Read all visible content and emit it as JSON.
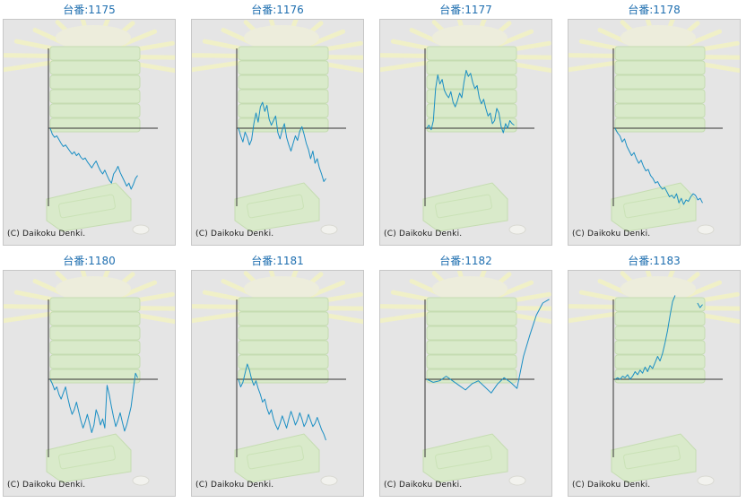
{
  "colors": {
    "line": "#1b8fc4",
    "axis": "#333333",
    "title": "#1f6fb0",
    "panel_bg": "#e5e5e5"
  },
  "chart_data": [
    {
      "type": "line",
      "title": "台番:1175",
      "credit": "(C) Daikoku Denki.",
      "ylim": [
        -1,
        1
      ],
      "values": [
        0.0,
        -0.08,
        -0.12,
        -0.1,
        -0.15,
        -0.2,
        -0.24,
        -0.22,
        -0.26,
        -0.3,
        -0.34,
        -0.31,
        -0.36,
        -0.33,
        -0.38,
        -0.41,
        -0.39,
        -0.44,
        -0.48,
        -0.52,
        -0.47,
        -0.43,
        -0.5,
        -0.56,
        -0.6,
        -0.55,
        -0.62,
        -0.68,
        -0.72,
        -0.6,
        -0.56,
        -0.5,
        -0.58,
        -0.64,
        -0.7,
        -0.76,
        -0.72,
        -0.8,
        -0.74,
        -0.66,
        -0.62
      ]
    },
    {
      "type": "line",
      "title": "台番:1176",
      "credit": "(C) Daikoku Denki.",
      "ylim": [
        -1,
        1
      ],
      "values": [
        0.0,
        -0.1,
        -0.18,
        -0.05,
        -0.12,
        -0.22,
        -0.15,
        0.06,
        0.2,
        0.08,
        0.28,
        0.34,
        0.22,
        0.3,
        0.12,
        0.04,
        0.1,
        0.16,
        -0.06,
        -0.14,
        -0.02,
        0.06,
        -0.12,
        -0.22,
        -0.3,
        -0.2,
        -0.1,
        -0.16,
        -0.04,
        0.02,
        -0.08,
        -0.2,
        -0.28,
        -0.4,
        -0.3,
        -0.46,
        -0.4,
        -0.52,
        -0.6,
        -0.7,
        -0.66
      ]
    },
    {
      "type": "line",
      "title": "台番:1177",
      "credit": "(C) Daikoku Denki.",
      "ylim": [
        -1,
        1
      ],
      "values": [
        0.0,
        0.04,
        -0.02,
        0.1,
        0.52,
        0.7,
        0.58,
        0.64,
        0.5,
        0.44,
        0.4,
        0.48,
        0.34,
        0.28,
        0.36,
        0.46,
        0.4,
        0.6,
        0.76,
        0.68,
        0.72,
        0.6,
        0.52,
        0.56,
        0.4,
        0.32,
        0.38,
        0.26,
        0.16,
        0.2,
        0.06,
        0.1,
        0.26,
        0.2,
        0.02,
        -0.06,
        0.06,
        0.0,
        0.1,
        0.06,
        0.04
      ]
    },
    {
      "type": "line",
      "title": "台番:1178",
      "credit": "(C) Daikoku Denki.",
      "ylim": [
        -1,
        1
      ],
      "values": [
        0.0,
        -0.06,
        -0.1,
        -0.18,
        -0.14,
        -0.24,
        -0.3,
        -0.36,
        -0.32,
        -0.4,
        -0.46,
        -0.42,
        -0.5,
        -0.56,
        -0.54,
        -0.62,
        -0.66,
        -0.72,
        -0.7,
        -0.76,
        -0.8,
        -0.78,
        -0.84,
        -0.9,
        -0.88,
        -0.92,
        -0.86,
        -0.98,
        -0.92,
        -1.0,
        -0.94,
        -0.96,
        -0.9,
        -0.86,
        -0.88,
        -0.94,
        -0.92,
        -0.98
      ]
    },
    {
      "type": "line",
      "title": "台番:1180",
      "credit": "(C) Daikoku Denki.",
      "ylim": [
        -1,
        1
      ],
      "values": [
        0.0,
        -0.06,
        -0.14,
        -0.1,
        -0.2,
        -0.26,
        -0.18,
        -0.1,
        -0.24,
        -0.36,
        -0.46,
        -0.4,
        -0.3,
        -0.42,
        -0.54,
        -0.64,
        -0.56,
        -0.46,
        -0.58,
        -0.7,
        -0.6,
        -0.4,
        -0.48,
        -0.6,
        -0.52,
        -0.64,
        -0.08,
        -0.2,
        -0.36,
        -0.5,
        -0.62,
        -0.54,
        -0.44,
        -0.56,
        -0.68,
        -0.6,
        -0.48,
        -0.36,
        -0.14,
        0.08,
        0.02
      ]
    },
    {
      "type": "line",
      "title": "台番:1181",
      "credit": "(C) Daikoku Denki.",
      "ylim": [
        -1,
        1
      ],
      "values": [
        0.0,
        -0.1,
        -0.04,
        0.08,
        0.2,
        0.12,
        0.0,
        -0.08,
        -0.02,
        -0.12,
        -0.2,
        -0.3,
        -0.26,
        -0.38,
        -0.46,
        -0.4,
        -0.52,
        -0.6,
        -0.66,
        -0.58,
        -0.48,
        -0.56,
        -0.64,
        -0.52,
        -0.42,
        -0.5,
        -0.6,
        -0.54,
        -0.44,
        -0.52,
        -0.62,
        -0.56,
        -0.46,
        -0.54,
        -0.62,
        -0.58,
        -0.5,
        -0.58,
        -0.66,
        -0.72,
        -0.8
      ]
    },
    {
      "type": "line",
      "title": "台番:1182",
      "credit": "(C) Daikoku Denki.",
      "ylim": [
        -1,
        1
      ],
      "values": [
        0.0,
        -0.04,
        -0.02,
        0.04,
        -0.02,
        -0.08,
        -0.14,
        -0.06,
        -0.02,
        -0.1,
        -0.18,
        -0.06,
        0.02,
        -0.04,
        -0.12,
        0.3,
        0.58,
        0.84,
        1.0,
        1.05
      ]
    },
    {
      "type": "line",
      "title": "台番:1183",
      "credit": "(C) Daikoku Denki.",
      "ylim": [
        -1,
        1
      ],
      "values": [
        0.0,
        0.02,
        0.0,
        0.04,
        0.02,
        0.06,
        0.0,
        0.04,
        0.1,
        0.06,
        0.12,
        0.08,
        0.16,
        0.1,
        0.18,
        0.14,
        0.22,
        0.3,
        0.24,
        0.34,
        0.48,
        0.64,
        0.84,
        1.02,
        1.1,
        null,
        null,
        null,
        null,
        null,
        null,
        null,
        null,
        1.0,
        0.94,
        0.98
      ]
    }
  ]
}
